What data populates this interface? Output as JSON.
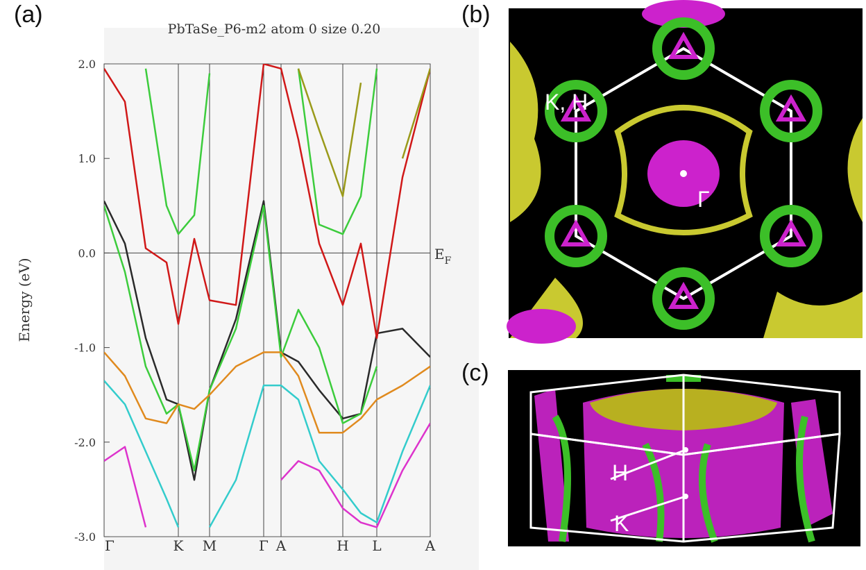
{
  "chart_data": {
    "type": "line",
    "title": "PbTaSe_P6-m2 atom  0    size 0.20",
    "y_label": "Energy (eV)",
    "annotation": "E",
    "annotation_sub": "F",
    "x": [
      0,
      30,
      60,
      90,
      107,
      130,
      152,
      190,
      230,
      255,
      280,
      310,
      344,
      370,
      393,
      430,
      470
    ],
    "xlim": [
      0,
      470
    ],
    "xticks": [
      {
        "value": 0,
        "label": "Γ"
      },
      {
        "value": 107,
        "label": "K"
      },
      {
        "value": 152,
        "label": "M"
      },
      {
        "value": 230,
        "label": "Γ"
      },
      {
        "value": 255,
        "label": "A"
      },
      {
        "value": 344,
        "label": "H"
      },
      {
        "value": 393,
        "label": "L"
      },
      {
        "value": 470,
        "label": "A"
      }
    ],
    "ylim": [
      -3,
      2
    ],
    "yticks": [
      {
        "value": 2,
        "label": "2.0"
      },
      {
        "value": 1,
        "label": "1.0"
      },
      {
        "value": 0,
        "label": "0.0"
      },
      {
        "value": -1,
        "label": "-1.0"
      },
      {
        "value": -2,
        "label": "-2.0"
      },
      {
        "value": -3,
        "label": "-3.0"
      }
    ],
    "series": [
      {
        "color": "#2a2a2a",
        "values": [
          0.55,
          0.1,
          -0.9,
          -1.55,
          -1.6,
          -2.4,
          -1.45,
          -0.7,
          0.55,
          -1.05,
          -1.15,
          -1.45,
          -1.75,
          -1.7,
          -0.85,
          -0.8,
          -1.1
        ]
      },
      {
        "color": "#d01818",
        "values": [
          1.95,
          1.6,
          0.05,
          -0.1,
          -0.75,
          0.15,
          -0.5,
          -0.55,
          2.0,
          1.95,
          1.2,
          0.1,
          -0.55,
          0.1,
          -0.9,
          0.8,
          1.95
        ]
      },
      {
        "color": "#3ccc3c",
        "values": [
          null,
          null,
          1.95,
          0.5,
          0.2,
          0.4,
          1.9,
          null,
          null,
          null,
          1.95,
          0.3,
          0.2,
          0.6,
          1.95,
          null,
          null
        ]
      },
      {
        "color": "#3ccc3c",
        "values": [
          0.5,
          -0.2,
          -1.2,
          -1.7,
          -1.6,
          -2.3,
          -1.45,
          -0.8,
          0.5,
          -1.1,
          -0.6,
          -1.0,
          -1.8,
          -1.7,
          -1.2,
          null,
          null
        ]
      },
      {
        "color": "#e08a1e",
        "values": [
          -1.05,
          -1.3,
          -1.75,
          -1.8,
          -1.6,
          -1.65,
          -1.5,
          -1.2,
          -1.05,
          -1.05,
          -1.3,
          -1.9,
          -1.9,
          -1.75,
          -1.55,
          -1.4,
          -1.2
        ]
      },
      {
        "color": "#33cccc",
        "values": [
          -1.35,
          -1.6,
          -2.1,
          -2.6,
          -2.9,
          null,
          -2.9,
          -2.4,
          -1.4,
          -1.4,
          -1.55,
          -2.2,
          -2.5,
          -2.75,
          -2.85,
          -2.1,
          -1.4
        ]
      },
      {
        "color": "#dd33cc",
        "values": [
          -2.2,
          -2.05,
          -2.9,
          null,
          null,
          null,
          null,
          null,
          null,
          -2.4,
          -2.2,
          -2.3,
          -2.7,
          -2.85,
          -2.9,
          -2.3,
          -1.8
        ]
      },
      {
        "color": "#9a9a1a",
        "values": [
          null,
          null,
          null,
          null,
          null,
          null,
          null,
          null,
          null,
          null,
          1.95,
          1.3,
          0.6,
          1.8,
          null,
          1.0,
          1.95
        ]
      }
    ]
  },
  "panels": {
    "a": "(a)",
    "b": "(b)",
    "c": "(c)",
    "b_labels": {
      "kh": "K, H",
      "gamma": "Γ"
    },
    "c_labels": {
      "h": "H",
      "k": "K"
    }
  }
}
